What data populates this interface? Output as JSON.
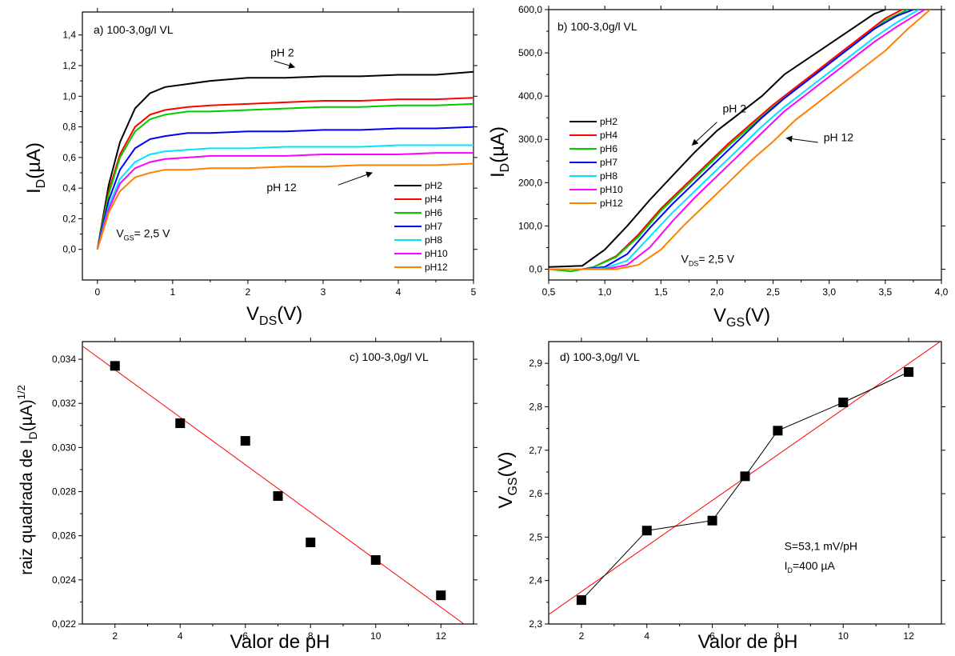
{
  "chart_data": [
    {
      "id": "a",
      "type": "line",
      "panel_label": "a) 100-3,0g/l VL",
      "xlabel_main": "V",
      "xlabel_sub": "DS",
      "xlabel_unit": "(V)",
      "ylabel_main": "I",
      "ylabel_sub": "D",
      "ylabel_unit": "(µA)",
      "xlim": [
        -0.2,
        5
      ],
      "ylim": [
        -0.2,
        1.55
      ],
      "xticks": [
        0,
        1,
        2,
        3,
        4,
        5
      ],
      "xtick_labels": [
        "0",
        "1",
        "2",
        "3",
        "4",
        "5"
      ],
      "yticks": [
        0,
        0.2,
        0.4,
        0.6,
        0.8,
        1.0,
        1.2,
        1.4
      ],
      "ytick_labels": [
        "0,0",
        "0,2",
        "0,4",
        "0,6",
        "0,8",
        "1,0",
        "1,2",
        "1,4"
      ],
      "annotations": [
        {
          "text": "pH 2",
          "x": 2.3,
          "y": 1.26,
          "arrow_from": [
            2.35,
            1.23
          ],
          "arrow_to": [
            2.62,
            1.19
          ]
        },
        {
          "text": "pH 12",
          "x": 2.25,
          "y": 0.38,
          "arrow_from": [
            3.2,
            0.42
          ],
          "arrow_to": [
            3.65,
            0.5
          ]
        },
        {
          "text_main": "V",
          "text_sub": "GS",
          "text_rest": "= 2,5 V",
          "x": 0.25,
          "y": 0.08
        }
      ],
      "legend_position": "bottom-right",
      "series": [
        {
          "name": "pH2",
          "color": "#000000",
          "x": [
            0,
            0.15,
            0.3,
            0.5,
            0.7,
            0.9,
            1.2,
            1.5,
            2,
            2.5,
            3,
            3.5,
            4,
            4.5,
            5
          ],
          "y": [
            0,
            0.42,
            0.7,
            0.92,
            1.02,
            1.06,
            1.08,
            1.1,
            1.12,
            1.12,
            1.13,
            1.13,
            1.14,
            1.14,
            1.16
          ]
        },
        {
          "name": "pH4",
          "color": "#ff0000",
          "x": [
            0,
            0.15,
            0.3,
            0.5,
            0.7,
            0.9,
            1.2,
            1.5,
            2,
            2.5,
            3,
            3.5,
            4,
            4.5,
            5
          ],
          "y": [
            0,
            0.38,
            0.62,
            0.8,
            0.88,
            0.91,
            0.93,
            0.94,
            0.95,
            0.96,
            0.97,
            0.97,
            0.98,
            0.98,
            0.99
          ]
        },
        {
          "name": "pH6",
          "color": "#00cc00",
          "x": [
            0,
            0.15,
            0.3,
            0.5,
            0.7,
            0.9,
            1.2,
            1.5,
            2,
            2.5,
            3,
            3.5,
            4,
            4.5,
            5
          ],
          "y": [
            0,
            0.36,
            0.6,
            0.77,
            0.85,
            0.88,
            0.9,
            0.9,
            0.91,
            0.92,
            0.93,
            0.93,
            0.94,
            0.94,
            0.95
          ]
        },
        {
          "name": "pH7",
          "color": "#0000ff",
          "x": [
            0,
            0.15,
            0.3,
            0.5,
            0.7,
            0.9,
            1.2,
            1.5,
            2,
            2.5,
            3,
            3.5,
            4,
            4.5,
            5
          ],
          "y": [
            0,
            0.32,
            0.52,
            0.66,
            0.72,
            0.74,
            0.76,
            0.76,
            0.77,
            0.77,
            0.78,
            0.78,
            0.79,
            0.79,
            0.8
          ]
        },
        {
          "name": "pH8",
          "color": "#00e5ff",
          "x": [
            0,
            0.15,
            0.3,
            0.5,
            0.7,
            0.9,
            1.2,
            1.5,
            2,
            2.5,
            3,
            3.5,
            4,
            4.5,
            5
          ],
          "y": [
            0,
            0.28,
            0.46,
            0.57,
            0.62,
            0.64,
            0.65,
            0.66,
            0.66,
            0.67,
            0.67,
            0.67,
            0.68,
            0.68,
            0.68
          ]
        },
        {
          "name": "pH10",
          "color": "#ff00ff",
          "x": [
            0,
            0.15,
            0.3,
            0.5,
            0.7,
            0.9,
            1.2,
            1.5,
            2,
            2.5,
            3,
            3.5,
            4,
            4.5,
            5
          ],
          "y": [
            0,
            0.26,
            0.43,
            0.53,
            0.57,
            0.59,
            0.6,
            0.61,
            0.61,
            0.61,
            0.62,
            0.62,
            0.62,
            0.63,
            0.63
          ]
        },
        {
          "name": "pH12",
          "color": "#ff8000",
          "x": [
            0,
            0.15,
            0.3,
            0.5,
            0.7,
            0.9,
            1.2,
            1.5,
            2,
            2.5,
            3,
            3.5,
            4,
            4.5,
            5
          ],
          "y": [
            0,
            0.24,
            0.38,
            0.47,
            0.5,
            0.52,
            0.52,
            0.53,
            0.53,
            0.54,
            0.54,
            0.55,
            0.55,
            0.55,
            0.56
          ]
        }
      ]
    },
    {
      "id": "b",
      "type": "line",
      "panel_label": "b) 100-3,0g/l VL",
      "xlabel_main": "V",
      "xlabel_sub": "GS",
      "xlabel_unit": "(V)",
      "ylabel_main": "I",
      "ylabel_sub": "D",
      "ylabel_unit": "(µA)",
      "xlim": [
        0.5,
        4.0
      ],
      "ylim": [
        -25,
        600
      ],
      "xticks": [
        0.5,
        1.0,
        1.5,
        2.0,
        2.5,
        3.0,
        3.5,
        4.0
      ],
      "xtick_labels": [
        "0,5",
        "1,0",
        "1,5",
        "2,0",
        "2,5",
        "3,0",
        "3,5",
        "4,0"
      ],
      "yticks": [
        0,
        100,
        200,
        300,
        400,
        500,
        600
      ],
      "ytick_labels": [
        "0,0",
        "100,0",
        "200,0",
        "300,0",
        "400,0",
        "500,0",
        "600,0"
      ],
      "annotations": [
        {
          "text": "pH 2",
          "x": 2.05,
          "y": 362,
          "arrow_from": [
            2.0,
            340
          ],
          "arrow_to": [
            1.78,
            287
          ]
        },
        {
          "text": "pH 12",
          "x": 2.95,
          "y": 296,
          "arrow_from": [
            2.9,
            293
          ],
          "arrow_to": [
            2.62,
            303
          ]
        },
        {
          "text_main": "V",
          "text_sub": "DS",
          "text_rest": "= 2,5 V",
          "x": 1.68,
          "y": 15
        }
      ],
      "legend_position": "middle-left",
      "series": [
        {
          "name": "pH2",
          "color": "#000000",
          "x": [
            0.5,
            0.8,
            1.0,
            1.2,
            1.4,
            1.6,
            1.8,
            2.0,
            2.2,
            2.4,
            2.6,
            2.8,
            3.0,
            3.2,
            3.4,
            3.5
          ],
          "y": [
            5,
            8,
            45,
            100,
            160,
            215,
            270,
            320,
            360,
            400,
            450,
            485,
            520,
            555,
            590,
            600
          ]
        },
        {
          "name": "pH4",
          "color": "#ff0000",
          "x": [
            0.5,
            0.8,
            0.9,
            1.1,
            1.3,
            1.5,
            1.7,
            1.9,
            2.1,
            2.3,
            2.5,
            2.7,
            2.9,
            3.1,
            3.3,
            3.5,
            3.65
          ],
          "y": [
            0,
            0,
            5,
            30,
            80,
            140,
            190,
            240,
            290,
            335,
            380,
            420,
            460,
            500,
            540,
            580,
            600
          ]
        },
        {
          "name": "pH6",
          "color": "#00cc00",
          "x": [
            0.5,
            0.7,
            0.9,
            1.1,
            1.3,
            1.5,
            1.7,
            1.9,
            2.1,
            2.3,
            2.5,
            2.7,
            2.9,
            3.1,
            3.3,
            3.5,
            3.7
          ],
          "y": [
            0,
            -5,
            5,
            28,
            75,
            135,
            185,
            235,
            285,
            330,
            375,
            415,
            455,
            495,
            535,
            575,
            600
          ]
        },
        {
          "name": "pH7",
          "color": "#0000ff",
          "x": [
            0.5,
            0.8,
            1.0,
            1.2,
            1.4,
            1.6,
            1.8,
            2.0,
            2.2,
            2.4,
            2.6,
            2.8,
            3.0,
            3.2,
            3.4,
            3.6,
            3.75
          ],
          "y": [
            0,
            0,
            5,
            35,
            95,
            150,
            200,
            250,
            300,
            350,
            395,
            435,
            475,
            515,
            555,
            585,
            600
          ]
        },
        {
          "name": "pH8",
          "color": "#00e5ff",
          "x": [
            0.5,
            0.8,
            1.0,
            1.2,
            1.4,
            1.6,
            1.8,
            2.0,
            2.2,
            2.4,
            2.6,
            2.8,
            3.0,
            3.2,
            3.4,
            3.6,
            3.8
          ],
          "y": [
            0,
            0,
            2,
            20,
            75,
            130,
            180,
            230,
            280,
            330,
            375,
            415,
            455,
            495,
            535,
            570,
            600
          ]
        },
        {
          "name": "pH10",
          "color": "#ff00ff",
          "x": [
            0.5,
            0.8,
            1.0,
            1.2,
            1.4,
            1.6,
            1.8,
            2.0,
            2.2,
            2.4,
            2.6,
            2.8,
            3.0,
            3.2,
            3.4,
            3.6,
            3.85
          ],
          "y": [
            0,
            0,
            0,
            10,
            50,
            110,
            165,
            215,
            265,
            315,
            365,
            405,
            445,
            485,
            525,
            560,
            600
          ]
        },
        {
          "name": "pH12",
          "color": "#ff8000",
          "x": [
            0.5,
            0.8,
            1.1,
            1.3,
            1.5,
            1.7,
            1.9,
            2.1,
            2.3,
            2.5,
            2.7,
            2.9,
            3.1,
            3.3,
            3.5,
            3.7,
            3.9
          ],
          "y": [
            0,
            0,
            0,
            10,
            45,
            100,
            150,
            200,
            250,
            295,
            345,
            385,
            425,
            465,
            505,
            555,
            600
          ]
        }
      ]
    },
    {
      "id": "c",
      "type": "scatter",
      "panel_label": "c) 100-3,0g/l VL",
      "xlabel": "Valor de pH",
      "ylabel_main": "raiz quadrada de I",
      "ylabel_sub": "D",
      "ylabel_unit": "(µA)",
      "ylabel_sup": "1/2",
      "xlim": [
        1,
        13
      ],
      "ylim": [
        0.022,
        0.0348
      ],
      "xticks": [
        2,
        4,
        6,
        8,
        10,
        12
      ],
      "xtick_labels": [
        "2",
        "4",
        "6",
        "8",
        "10",
        "12"
      ],
      "yticks": [
        0.022,
        0.024,
        0.026,
        0.028,
        0.03,
        0.032,
        0.034
      ],
      "ytick_labels": [
        "0,022",
        "0,024",
        "0,026",
        "0,028",
        "0,030",
        "0,032",
        "0,034"
      ],
      "points": {
        "x": [
          2,
          4,
          6,
          7,
          8,
          10,
          12
        ],
        "y": [
          0.0337,
          0.0311,
          0.0303,
          0.0278,
          0.0257,
          0.0249,
          0.0233
        ]
      },
      "fit_line": {
        "x": [
          1,
          12.8
        ],
        "y": [
          0.0346,
          0.0219
        ],
        "color": "#ff0000"
      }
    },
    {
      "id": "d",
      "type": "line",
      "panel_label": "d) 100-3,0g/l VL",
      "xlabel": "Valor de pH",
      "ylabel_main": "V",
      "ylabel_sub": "GS",
      "ylabel_unit": "(V)",
      "xlim": [
        1,
        13
      ],
      "ylim": [
        2.3,
        2.95
      ],
      "xticks": [
        2,
        4,
        6,
        8,
        10,
        12
      ],
      "xtick_labels": [
        "2",
        "4",
        "6",
        "8",
        "10",
        "12"
      ],
      "yticks": [
        2.3,
        2.4,
        2.5,
        2.6,
        2.7,
        2.8,
        2.9
      ],
      "ytick_labels": [
        "2,3",
        "2,4",
        "2,5",
        "2,6",
        "2,7",
        "2,8",
        "2,9"
      ],
      "points": {
        "x": [
          2,
          4,
          6,
          7,
          8,
          10,
          12
        ],
        "y": [
          2.355,
          2.515,
          2.538,
          2.64,
          2.745,
          2.81,
          2.88
        ]
      },
      "fit_line": {
        "x": [
          1,
          13
        ],
        "y": [
          2.322,
          2.952
        ],
        "color": "#ff0000"
      },
      "annotations": [
        {
          "text": "S=53,1 mV/pH",
          "x": 8.2,
          "y": 2.47
        },
        {
          "text_main": "I",
          "text_sub": "D",
          "text_rest": "=400 µA",
          "x": 8.2,
          "y": 2.425
        }
      ]
    }
  ]
}
